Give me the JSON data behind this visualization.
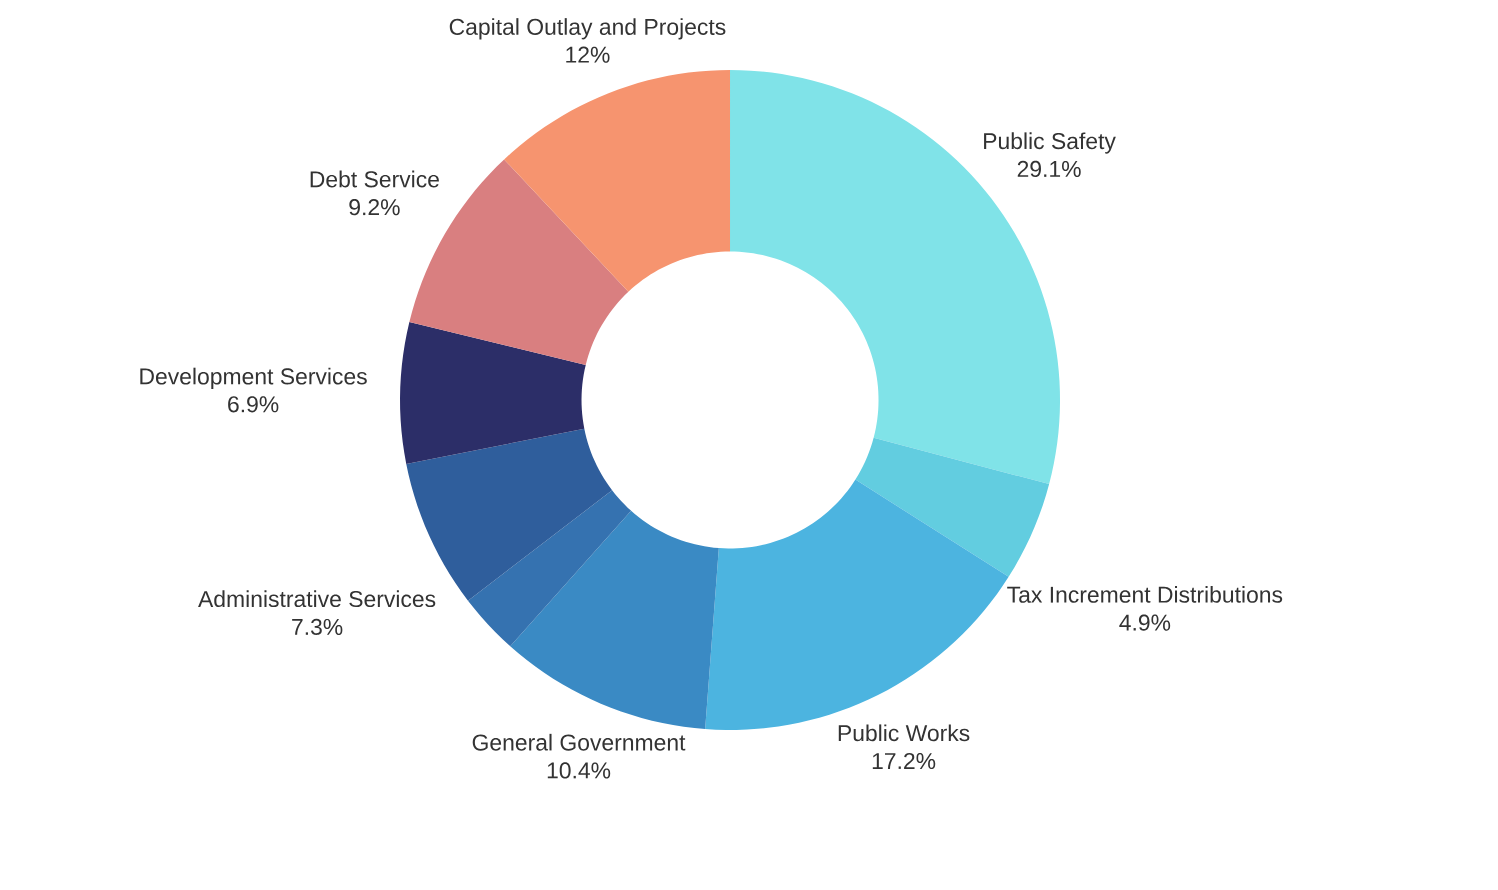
{
  "chart_data": {
    "type": "donut",
    "categories": [
      "Public Safety",
      "Tax Increment Distributions",
      "Public Works",
      "General Government",
      null,
      "Administrative Services",
      "Development Services",
      "Debt Service",
      "Capital Outlay and Projects"
    ],
    "values": [
      29.1,
      4.9,
      17.2,
      10.4,
      3.0,
      7.3,
      6.9,
      9.2,
      12
    ],
    "value_labels": [
      "29.1%",
      "4.9%",
      "17.2%",
      "10.4%",
      null,
      "7.3%",
      "6.9%",
      "9.2%",
      "12%"
    ],
    "colors": [
      "#80e3e8",
      "#62cde0",
      "#4cb4e0",
      "#3a8ac4",
      "#3572b0",
      "#2f5e9c",
      "#2c2e68",
      "#d97f80",
      "#f6946f"
    ]
  }
}
